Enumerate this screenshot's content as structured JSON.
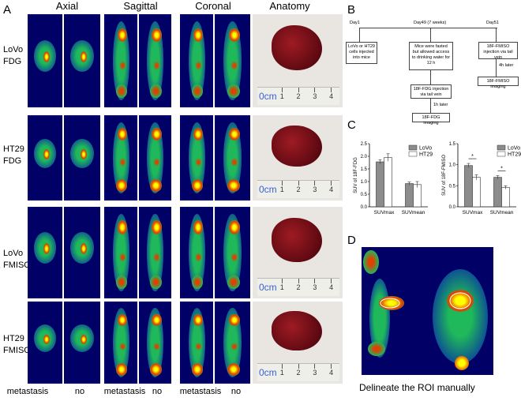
{
  "panel_letters": {
    "a": "A",
    "b": "B",
    "c": "C",
    "d": "D"
  },
  "column_headers": [
    "Axial",
    "Sagittal",
    "Coronal",
    "Anatomy"
  ],
  "rows": [
    {
      "line1": "LoVo",
      "line2": "FDG"
    },
    {
      "line1": "HT29",
      "line2": "FDG"
    },
    {
      "line1": "LoVo",
      "line2": "FMISO"
    },
    {
      "line1": "HT29",
      "line2": "FMISO"
    }
  ],
  "bottom_labels": [
    "metastasis",
    "no",
    "metastasis",
    "no",
    "metastasis",
    "no"
  ],
  "ruler": {
    "unit": "0cm",
    "numbers": [
      "1",
      "2",
      "3",
      "4"
    ]
  },
  "flowchart": {
    "day1": "Day1",
    "day49": "Day49 (7 weeks)",
    "day51": "Day51",
    "box1": "LoVo or HT29 cells injected into mice",
    "box2": "Mice were fasted but allowed access to drinking water for 12 h",
    "box3": "18F-FDG injection via tail vein",
    "arrow1": "1h later",
    "box4": "18F-FDG imaging",
    "box5": "18F-FMISO injection via tail vein",
    "arrow2": "4h later",
    "box6": "18F-FMISO imaging"
  },
  "chart_data": [
    {
      "type": "bar",
      "categories": [
        "SUVmax",
        "SUVmean"
      ],
      "series": [
        {
          "name": "LoVo",
          "values": [
            1.78,
            0.92
          ],
          "errors": [
            0.08,
            0.06
          ]
        },
        {
          "name": "HT29",
          "values": [
            1.95,
            0.88
          ],
          "errors": [
            0.15,
            0.12
          ]
        }
      ],
      "ylabel": "SUV of 18F-FDG",
      "ylim": [
        0,
        2.5
      ],
      "significance": []
    },
    {
      "type": "bar",
      "categories": [
        "SUVmax",
        "SUVmean"
      ],
      "series": [
        {
          "name": "LoVo",
          "values": [
            0.98,
            0.7
          ],
          "errors": [
            0.05,
            0.04
          ]
        },
        {
          "name": "HT29",
          "values": [
            0.7,
            0.46
          ],
          "errors": [
            0.06,
            0.04
          ]
        }
      ],
      "ylabel": "SUV of 18F-FMISO",
      "ylim": [
        0,
        1.5
      ],
      "significance": [
        "*",
        "*"
      ]
    }
  ],
  "colors": {
    "lovo": "#8c8c8c",
    "ht29": "#ffffff",
    "scan_bg": "#000066"
  },
  "caption": "Delineate the ROI manually"
}
